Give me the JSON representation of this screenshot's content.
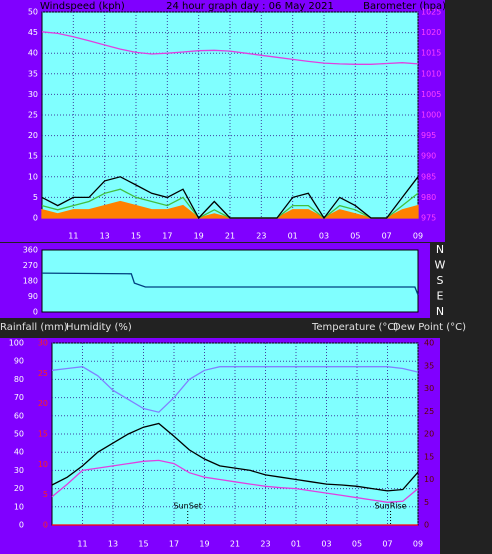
{
  "chart_data": [
    {
      "type": "line",
      "title": "24 hour graph day : 06 May 2021",
      "ylabel": "Windspeed (kph)",
      "y2label": "Barometer (hpa)",
      "grid": true,
      "xlim": [
        9,
        33
      ],
      "xticks": [
        11,
        13,
        15,
        17,
        19,
        21,
        23,
        {
          "value": 25,
          "label": "01"
        },
        {
          "value": 27,
          "label": "03"
        },
        {
          "value": 29,
          "label": "05"
        },
        {
          "value": 31,
          "label": "07"
        },
        {
          "value": 33,
          "label": "09"
        }
      ],
      "ylim": [
        0,
        50
      ],
      "yticks": [
        0,
        5,
        10,
        15,
        20,
        25,
        30,
        35,
        40,
        45,
        50
      ],
      "y2lim": [
        975,
        1025
      ],
      "y2ticks": [
        975,
        980,
        985,
        990,
        995,
        1000,
        1005,
        1010,
        1015,
        1020,
        1025
      ],
      "x": [
        9,
        10,
        11,
        12,
        13,
        14,
        15,
        16,
        17,
        18,
        19,
        20,
        21,
        22,
        23,
        24,
        25,
        26,
        27,
        28,
        29,
        30,
        31,
        32,
        33
      ],
      "series": [
        {
          "color": "#ff8000",
          "kind": "area",
          "axis": "y",
          "values": [
            2,
            1,
            2,
            2,
            3,
            4,
            3,
            2,
            2,
            3,
            0,
            1,
            0,
            0,
            0,
            0,
            2,
            2,
            0,
            2,
            1,
            0,
            0,
            2,
            3
          ]
        },
        {
          "color": "#40c040",
          "axis": "y",
          "values": [
            3,
            2,
            3,
            4,
            6,
            7,
            5,
            4,
            3,
            5,
            0,
            2,
            0,
            0,
            0,
            0,
            3,
            3,
            0,
            3,
            2,
            0,
            0,
            3,
            6
          ]
        },
        {
          "color": "#000000",
          "axis": "y",
          "values": [
            5,
            3,
            5,
            5,
            9,
            10,
            8,
            6,
            5,
            7,
            0,
            4,
            0,
            0,
            0,
            0,
            5,
            6,
            0,
            5,
            3,
            0,
            0,
            5,
            10
          ]
        },
        {
          "color": "#e040e0",
          "axis": "y2",
          "values": [
            1020.2,
            1019.8,
            1019,
            1018,
            1017,
            1016,
            1015.2,
            1014.8,
            1015,
            1015.3,
            1015.6,
            1015.7,
            1015.5,
            1015,
            1014.5,
            1014,
            1013.5,
            1013,
            1012.6,
            1012.4,
            1012.3,
            1012.3,
            1012.5,
            1012.7,
            1012.4
          ]
        }
      ]
    },
    {
      "type": "line",
      "grid": false,
      "xlim": [
        9,
        33
      ],
      "ylim": [
        0,
        360
      ],
      "yticks": [
        0,
        90,
        180,
        270,
        360
      ],
      "y2lim": [
        0,
        360
      ],
      "y2ticks": [
        {
          "value": 0,
          "label": "N"
        },
        {
          "value": 90,
          "label": "E"
        },
        {
          "value": 180,
          "label": "S"
        },
        {
          "value": 270,
          "label": "W"
        },
        {
          "value": 360,
          "label": "N"
        }
      ],
      "x": [
        9,
        14.7,
        14.9,
        15.6,
        32.8,
        33
      ],
      "series": [
        {
          "color": "#004080",
          "axis": "y",
          "values": [
            226,
            222,
            168,
            145,
            145,
            99
          ]
        }
      ]
    },
    {
      "type": "line",
      "grid": true,
      "labels": [
        "Rainfall (mm)",
        "Humidity (%)",
        "Temperature (°C)",
        "Dew Point (°C)"
      ],
      "xlim": [
        9,
        33
      ],
      "xticks": [
        11,
        13,
        15,
        17,
        19,
        21,
        23,
        {
          "value": 25,
          "label": "01"
        },
        {
          "value": 27,
          "label": "03"
        },
        {
          "value": 29,
          "label": "05"
        },
        {
          "value": 31,
          "label": "07"
        },
        {
          "value": 33,
          "label": "09"
        }
      ],
      "ylim": [
        0,
        100
      ],
      "yticks": [
        0,
        10,
        20,
        30,
        40,
        50,
        60,
        70,
        80,
        90,
        100
      ],
      "y3lim": [
        0,
        30
      ],
      "y3ticks": [
        0,
        5,
        10,
        15,
        20,
        25,
        30
      ],
      "y2lim": [
        0,
        40
      ],
      "y2ticks": [
        0,
        5,
        10,
        15,
        20,
        25,
        30,
        35,
        40
      ],
      "x": [
        9,
        10,
        11,
        12,
        13,
        14,
        15,
        16,
        17,
        18,
        19,
        20,
        21,
        22,
        23,
        24,
        25,
        26,
        27,
        28,
        29,
        30,
        31,
        32,
        33
      ],
      "series": [
        {
          "color": "#ff0000",
          "axis": "y3",
          "values": [
            0,
            0,
            0,
            0,
            0,
            0,
            0,
            0,
            0,
            0,
            0,
            0,
            0,
            0,
            0,
            0,
            0,
            0,
            0,
            0,
            0,
            0,
            0,
            0,
            0
          ]
        },
        {
          "color": "#8080ff",
          "axis": "y",
          "values": [
            85,
            86,
            87,
            82,
            74,
            69,
            64,
            62,
            70,
            80,
            85,
            87,
            87,
            87,
            87,
            87,
            87,
            87,
            87,
            87,
            87,
            87,
            87,
            86,
            84
          ]
        },
        {
          "color": "#000000",
          "axis": "y2",
          "values": [
            8.8,
            10.5,
            13,
            16,
            18,
            20,
            21.5,
            22.3,
            19.5,
            16.5,
            14.5,
            13,
            12.5,
            12,
            11,
            10.5,
            10,
            9.5,
            9,
            8.8,
            8.5,
            8,
            7.5,
            7.8,
            11.6
          ]
        },
        {
          "color": "#e040e0",
          "axis": "y2",
          "values": [
            6.2,
            9,
            12,
            12.5,
            13,
            13.5,
            14,
            14.2,
            13.5,
            11.5,
            10.5,
            10,
            9.5,
            9,
            8.5,
            8.2,
            8,
            7.5,
            7,
            6.5,
            6,
            5.5,
            5,
            5.2,
            8
          ]
        }
      ],
      "annotations": [
        {
          "text": "SunSet",
          "x": 17.9
        },
        {
          "text": "SunRise",
          "x": 31.2
        }
      ]
    }
  ]
}
